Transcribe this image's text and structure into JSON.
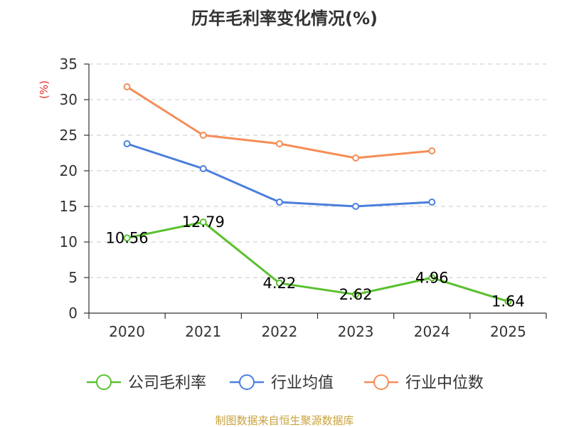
{
  "chart_data": {
    "type": "line",
    "title": "历年毛利率变化情况(%)",
    "ylabel": "(%)",
    "xlabel": "",
    "categories": [
      "2020",
      "2021",
      "2022",
      "2023",
      "2024",
      "2025"
    ],
    "ylim": [
      0,
      35
    ],
    "yticks": [
      0,
      5,
      10,
      15,
      20,
      25,
      30,
      35
    ],
    "grid": true,
    "legend_position": "bottom",
    "series": [
      {
        "name": "公司毛利率",
        "color": "#5ac02f",
        "values": [
          10.56,
          12.79,
          4.22,
          2.62,
          4.96,
          1.64
        ],
        "labels": [
          "10.56",
          "12.79",
          "4.22",
          "2.62",
          "4.96",
          "1.64"
        ]
      },
      {
        "name": "行业均值",
        "color": "#4a7fdc",
        "values": [
          23.8,
          20.3,
          15.6,
          15.0,
          15.6,
          null
        ]
      },
      {
        "name": "行业中位数",
        "color": "#f58d58",
        "values": [
          31.8,
          25.0,
          23.8,
          21.8,
          22.8,
          null
        ]
      }
    ]
  },
  "source": "制图数据来自恒生聚源数据库"
}
